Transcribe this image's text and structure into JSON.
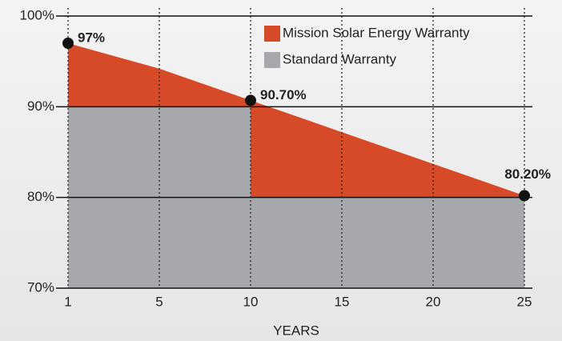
{
  "chart_data": {
    "type": "warranty-area",
    "x_label": "YEARS",
    "categories": [
      "1",
      "5",
      "10",
      "15",
      "20",
      "25"
    ],
    "series": [
      {
        "name": "Mission Solar Energy Warranty",
        "color": "#d64a27",
        "values": [
          97,
          94.2,
          90.7,
          87.2,
          83.7,
          80.2
        ],
        "value_labels": [
          "97%",
          null,
          "90.70%",
          null,
          null,
          "80.20%"
        ]
      },
      {
        "name": "Standard Warranty",
        "color": "#a7a8ab",
        "step": "pre",
        "values": [
          90,
          90,
          90,
          80,
          80,
          80
        ]
      }
    ],
    "ylim": [
      70,
      100
    ],
    "yticks": [
      {
        "value": 70,
        "label": "70%"
      },
      {
        "value": 80,
        "label": "80%"
      },
      {
        "value": 90,
        "label": "90%"
      },
      {
        "value": 100,
        "label": "100%"
      }
    ],
    "grid": true,
    "legend": "upper right"
  }
}
